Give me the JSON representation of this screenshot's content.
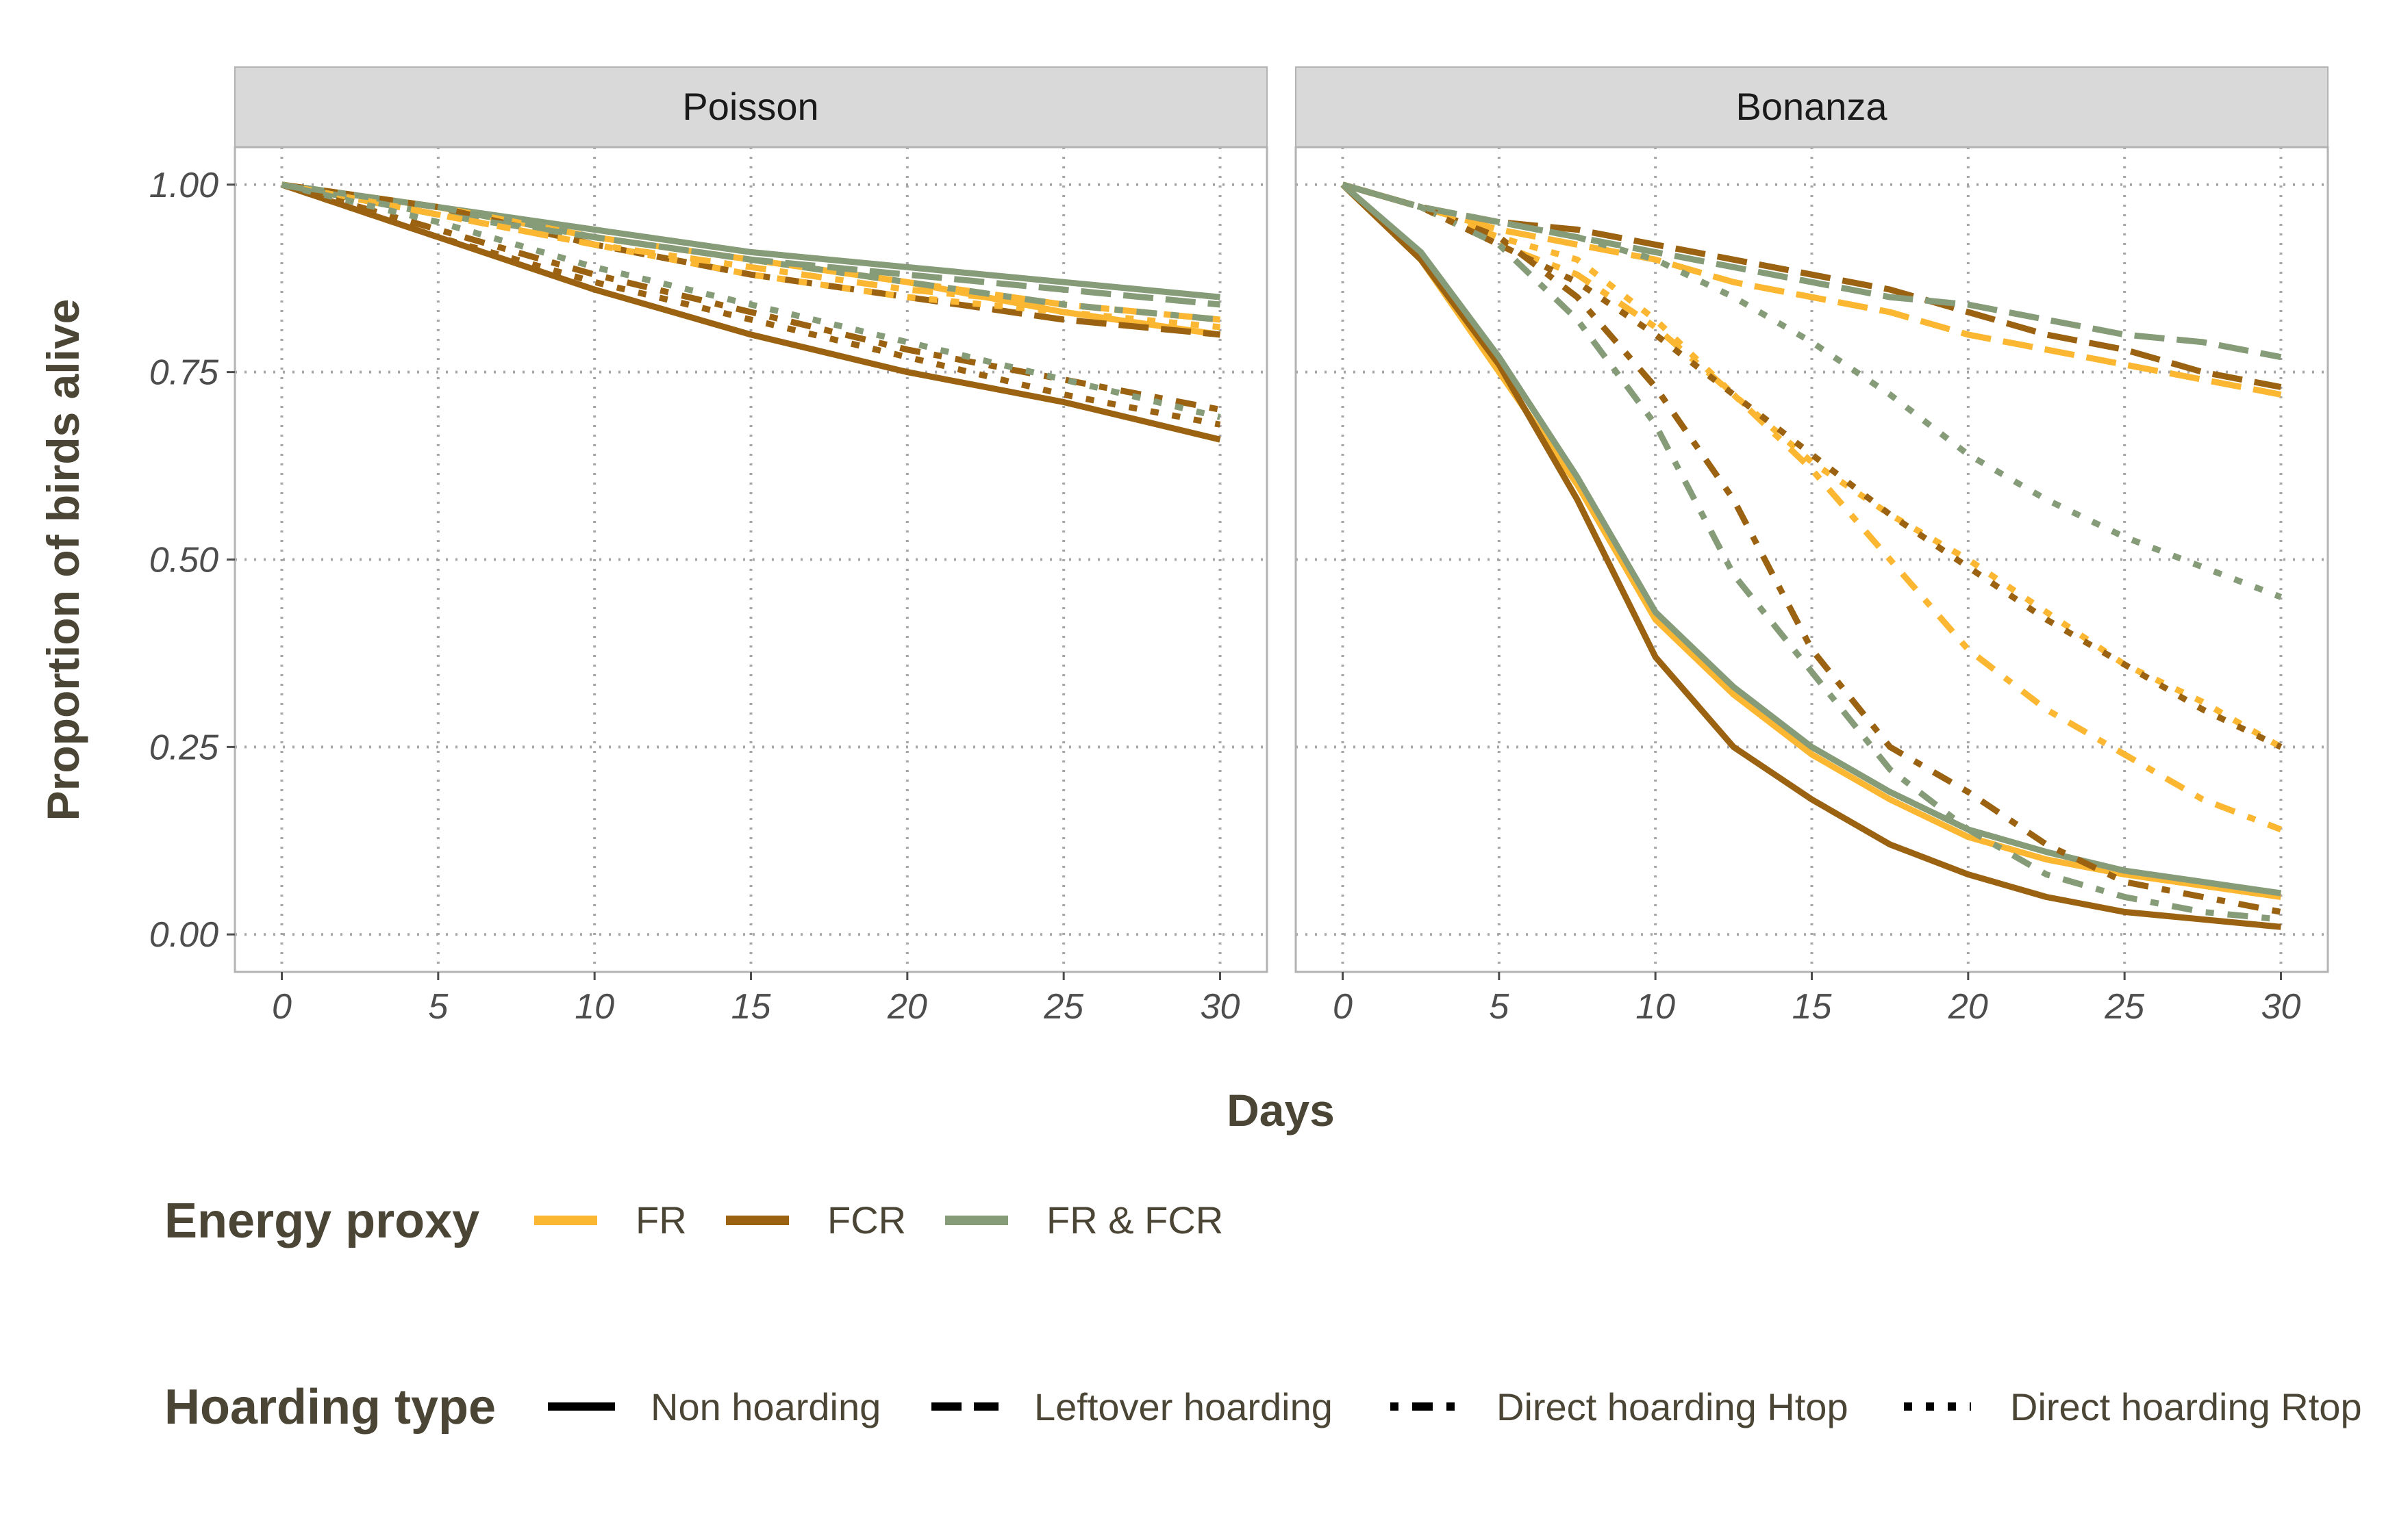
{
  "chart_data": {
    "type": "line",
    "xlabel": "Days",
    "ylabel": "Proportion of birds alive",
    "xlim": [
      -1.5,
      31.5
    ],
    "ylim": [
      -0.05,
      1.05
    ],
    "x_ticks": [
      0,
      5,
      10,
      15,
      20,
      25,
      30
    ],
    "x_tick_labels": [
      "0",
      "5",
      "10",
      "15",
      "20",
      "25",
      "30"
    ],
    "y_ticks": [
      0,
      0.25,
      0.5,
      0.75,
      1.0
    ],
    "y_tick_labels": [
      "0.00",
      "0.25",
      "0.50",
      "0.75",
      "1.00"
    ],
    "grid": "dotted",
    "legend_position": "bottom",
    "colors": {
      "FR": "#FBB731",
      "FCR": "#9A6211",
      "FR & FCR": "#869C79"
    },
    "panels": [
      {
        "title": "Poisson",
        "x": [
          0,
          5,
          10,
          15,
          20,
          25,
          30
        ],
        "series": [
          {
            "proxy": "FR",
            "hoarding": "Non hoarding",
            "values": [
              1.0,
              0.97,
              0.93,
              0.9,
              0.87,
              0.83,
              0.8
            ]
          },
          {
            "proxy": "FCR",
            "hoarding": "Non hoarding",
            "values": [
              1.0,
              0.93,
              0.86,
              0.8,
              0.75,
              0.71,
              0.66
            ]
          },
          {
            "proxy": "FR & FCR",
            "hoarding": "Non hoarding",
            "values": [
              1.0,
              0.97,
              0.94,
              0.91,
              0.89,
              0.87,
              0.85
            ]
          },
          {
            "proxy": "FR",
            "hoarding": "Leftover hoarding",
            "values": [
              1.0,
              0.97,
              0.93,
              0.9,
              0.87,
              0.84,
              0.82
            ]
          },
          {
            "proxy": "FCR",
            "hoarding": "Leftover hoarding",
            "values": [
              1.0,
              0.97,
              0.92,
              0.88,
              0.85,
              0.82,
              0.8
            ]
          },
          {
            "proxy": "FR & FCR",
            "hoarding": "Leftover hoarding",
            "values": [
              1.0,
              0.96,
              0.93,
              0.9,
              0.88,
              0.86,
              0.84
            ]
          },
          {
            "proxy": "FR",
            "hoarding": "Direct hoarding Htop",
            "values": [
              1.0,
              0.96,
              0.92,
              0.89,
              0.86,
              0.84,
              0.82
            ]
          },
          {
            "proxy": "FCR",
            "hoarding": "Direct hoarding Htop",
            "values": [
              1.0,
              0.94,
              0.88,
              0.83,
              0.78,
              0.74,
              0.7
            ]
          },
          {
            "proxy": "FR & FCR",
            "hoarding": "Direct hoarding Htop",
            "values": [
              1.0,
              0.97,
              0.93,
              0.9,
              0.87,
              0.84,
              0.82
            ]
          },
          {
            "proxy": "FR",
            "hoarding": "Direct hoarding Rtop",
            "values": [
              1.0,
              0.96,
              0.92,
              0.88,
              0.85,
              0.83,
              0.81
            ]
          },
          {
            "proxy": "FCR",
            "hoarding": "Direct hoarding Rtop",
            "values": [
              1.0,
              0.93,
              0.87,
              0.82,
              0.77,
              0.72,
              0.68
            ]
          },
          {
            "proxy": "FR & FCR",
            "hoarding": "Direct hoarding Rtop",
            "values": [
              1.0,
              0.95,
              0.89,
              0.84,
              0.79,
              0.74,
              0.69
            ]
          }
        ]
      },
      {
        "title": "Bonanza",
        "x": [
          0,
          2.5,
          5,
          7.5,
          10,
          12.5,
          15,
          17.5,
          20,
          22.5,
          25,
          27.5,
          30
        ],
        "series": [
          {
            "proxy": "FR",
            "hoarding": "Non hoarding",
            "values": [
              1.0,
              0.9,
              0.75,
              0.6,
              0.42,
              0.32,
              0.24,
              0.18,
              0.13,
              0.1,
              0.08,
              0.065,
              0.05
            ]
          },
          {
            "proxy": "FCR",
            "hoarding": "Non hoarding",
            "values": [
              1.0,
              0.9,
              0.76,
              0.58,
              0.37,
              0.25,
              0.18,
              0.12,
              0.08,
              0.05,
              0.03,
              0.02,
              0.01
            ]
          },
          {
            "proxy": "FR & FCR",
            "hoarding": "Non hoarding",
            "values": [
              1.0,
              0.91,
              0.77,
              0.61,
              0.43,
              0.33,
              0.25,
              0.19,
              0.14,
              0.11,
              0.085,
              0.07,
              0.055
            ]
          },
          {
            "proxy": "FR",
            "hoarding": "Leftover hoarding",
            "values": [
              1.0,
              0.97,
              0.94,
              0.92,
              0.9,
              0.87,
              0.85,
              0.83,
              0.8,
              0.78,
              0.76,
              0.74,
              0.72
            ]
          },
          {
            "proxy": "FCR",
            "hoarding": "Leftover hoarding",
            "values": [
              1.0,
              0.97,
              0.95,
              0.94,
              0.92,
              0.9,
              0.88,
              0.86,
              0.83,
              0.8,
              0.78,
              0.75,
              0.73
            ]
          },
          {
            "proxy": "FR & FCR",
            "hoarding": "Leftover hoarding",
            "values": [
              1.0,
              0.97,
              0.95,
              0.93,
              0.91,
              0.89,
              0.87,
              0.85,
              0.84,
              0.82,
              0.8,
              0.79,
              0.77
            ]
          },
          {
            "proxy": "FR",
            "hoarding": "Direct hoarding Htop",
            "values": [
              1.0,
              0.97,
              0.92,
              0.88,
              0.81,
              0.72,
              0.62,
              0.5,
              0.38,
              0.3,
              0.24,
              0.18,
              0.14
            ]
          },
          {
            "proxy": "FCR",
            "hoarding": "Direct hoarding Htop",
            "values": [
              1.0,
              0.97,
              0.93,
              0.85,
              0.73,
              0.58,
              0.38,
              0.25,
              0.19,
              0.12,
              0.07,
              0.05,
              0.03
            ]
          },
          {
            "proxy": "FR & FCR",
            "hoarding": "Direct hoarding Htop",
            "values": [
              1.0,
              0.97,
              0.92,
              0.82,
              0.68,
              0.48,
              0.35,
              0.22,
              0.14,
              0.08,
              0.05,
              0.03,
              0.02
            ]
          },
          {
            "proxy": "FR",
            "hoarding": "Direct hoarding Rtop",
            "values": [
              1.0,
              0.97,
              0.93,
              0.9,
              0.82,
              0.72,
              0.63,
              0.56,
              0.5,
              0.43,
              0.36,
              0.31,
              0.25
            ]
          },
          {
            "proxy": "FCR",
            "hoarding": "Direct hoarding Rtop",
            "values": [
              1.0,
              0.97,
              0.92,
              0.87,
              0.8,
              0.72,
              0.64,
              0.56,
              0.49,
              0.42,
              0.36,
              0.3,
              0.25
            ]
          },
          {
            "proxy": "FR & FCR",
            "hoarding": "Direct hoarding Rtop",
            "values": [
              1.0,
              0.97,
              0.95,
              0.93,
              0.9,
              0.85,
              0.79,
              0.72,
              0.64,
              0.58,
              0.53,
              0.49,
              0.45
            ]
          }
        ]
      }
    ],
    "legend": {
      "energy_title": "Energy proxy",
      "energy_items": [
        "FR",
        "FCR",
        "FR & FCR"
      ],
      "hoarding_title": "Hoarding type",
      "hoarding_items": [
        "Non hoarding",
        "Leftover hoarding",
        "Direct hoarding Htop",
        "Direct hoarding Rtop"
      ]
    }
  }
}
